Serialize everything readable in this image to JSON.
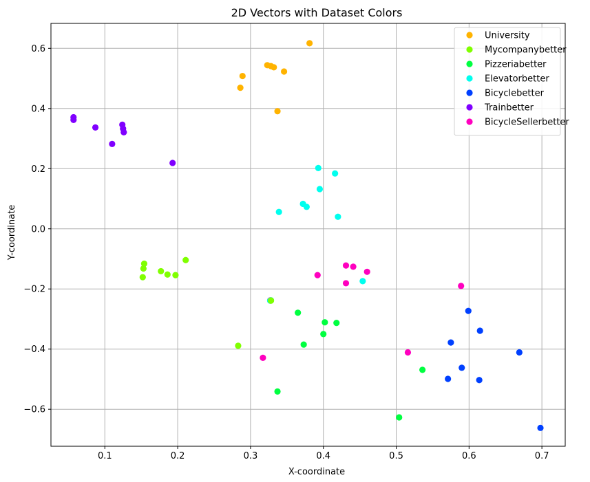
{
  "chart_data": {
    "type": "scatter",
    "title": "2D Vectors with Dataset Colors",
    "xlabel": "X-coordinate",
    "ylabel": "Y-coordinate",
    "xlim": [
      0.026,
      0.732
    ],
    "ylim": [
      -0.723,
      0.683
    ],
    "xticks": [
      0.1,
      0.2,
      0.3,
      0.4,
      0.5,
      0.6,
      0.7
    ],
    "yticks": [
      -0.6,
      -0.4,
      -0.2,
      0.0,
      0.2,
      0.4,
      0.6
    ],
    "xtick_labels": [
      "0.1",
      "0.2",
      "0.3",
      "0.4",
      "0.5",
      "0.6",
      "0.7"
    ],
    "ytick_labels": [
      "−0.6",
      "−0.4",
      "−0.2",
      "0.0",
      "0.2",
      "0.4",
      "0.6"
    ],
    "grid": true,
    "legend_position": "top-right",
    "series": [
      {
        "name": "University",
        "color": "#ffb300",
        "points": [
          [
            0.381,
            0.617
          ],
          [
            0.323,
            0.544
          ],
          [
            0.328,
            0.541
          ],
          [
            0.332,
            0.537
          ],
          [
            0.346,
            0.523
          ],
          [
            0.289,
            0.508
          ],
          [
            0.286,
            0.469
          ],
          [
            0.337,
            0.391
          ]
        ]
      },
      {
        "name": "Mycompanybetter",
        "color": "#80ff00",
        "points": [
          [
            0.211,
            -0.104
          ],
          [
            0.154,
            -0.116
          ],
          [
            0.153,
            -0.132
          ],
          [
            0.177,
            -0.141
          ],
          [
            0.186,
            -0.152
          ],
          [
            0.197,
            -0.154
          ],
          [
            0.152,
            -0.161
          ],
          [
            0.283,
            -0.389
          ]
        ]
      },
      {
        "name": "Pizzeriabetter",
        "color": "#00ff40",
        "points": [
          [
            0.365,
            -0.279
          ],
          [
            0.402,
            -0.311
          ],
          [
            0.418,
            -0.313
          ],
          [
            0.4,
            -0.35
          ],
          [
            0.373,
            -0.385
          ],
          [
            0.536,
            -0.469
          ],
          [
            0.337,
            -0.541
          ],
          [
            0.504,
            -0.627
          ]
        ]
      },
      {
        "name": "Elevatorbetter",
        "color": "#00ffee",
        "points": [
          [
            0.393,
            0.202
          ],
          [
            0.416,
            0.184
          ],
          [
            0.395,
            0.132
          ],
          [
            0.372,
            0.083
          ],
          [
            0.377,
            0.073
          ],
          [
            0.339,
            0.056
          ],
          [
            0.42,
            0.04
          ],
          [
            0.454,
            -0.174
          ]
        ]
      },
      {
        "name": "Bicyclebetter",
        "color": "#0040ff",
        "points": [
          [
            0.599,
            -0.273
          ],
          [
            0.615,
            -0.339
          ],
          [
            0.575,
            -0.378
          ],
          [
            0.669,
            -0.411
          ],
          [
            0.59,
            -0.462
          ],
          [
            0.571,
            -0.499
          ],
          [
            0.614,
            -0.503
          ],
          [
            0.698,
            -0.662
          ]
        ]
      },
      {
        "name": "Trainbetter",
        "color": "#8000ff",
        "points": [
          [
            0.057,
            0.371
          ],
          [
            0.057,
            0.362
          ],
          [
            0.124,
            0.346
          ],
          [
            0.087,
            0.337
          ],
          [
            0.125,
            0.333
          ],
          [
            0.126,
            0.321
          ],
          [
            0.11,
            0.282
          ],
          [
            0.193,
            0.219
          ]
        ]
      },
      {
        "name": "BicycleSellerbetter",
        "color": "#ff00bf",
        "points": [
          [
            0.431,
            -0.122
          ],
          [
            0.441,
            -0.126
          ],
          [
            0.46,
            -0.143
          ],
          [
            0.392,
            -0.154
          ],
          [
            0.431,
            -0.181
          ],
          [
            0.589,
            -0.19
          ],
          [
            0.516,
            -0.411
          ],
          [
            0.317,
            -0.429
          ]
        ]
      },
      {
        "name": "",
        "color": "#ff00bf",
        "points": []
      }
    ],
    "extra_points": [
      {
        "color": "#ff00bf",
        "x": 0.327,
        "y": -0.238
      },
      {
        "color": "#00ff40",
        "x": 0.328,
        "y": -0.238
      },
      {
        "color": "#00ffee",
        "x": 0.327,
        "y": -0.239
      },
      {
        "color": "#80ff00",
        "x": 0.328,
        "y": -0.239
      }
    ]
  }
}
